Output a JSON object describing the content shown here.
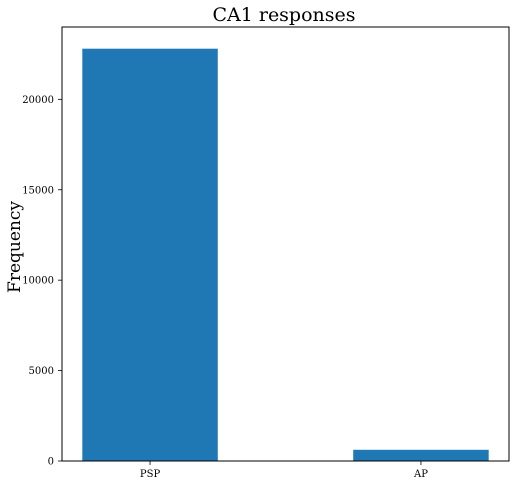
{
  "chart_data": {
    "type": "bar",
    "title": "CA1 responses",
    "xlabel": "",
    "ylabel": "Frequency",
    "categories": [
      "PSP",
      "AP"
    ],
    "values": [
      22800,
      620
    ],
    "ylim": [
      0,
      24000
    ],
    "yticks": [
      0,
      5000,
      10000,
      15000,
      20000
    ],
    "ytick_labels": [
      "0",
      "5000",
      "10000",
      "15000",
      "20000"
    ],
    "bar_color": "#1f77b4",
    "grid": false,
    "legend": "none"
  }
}
